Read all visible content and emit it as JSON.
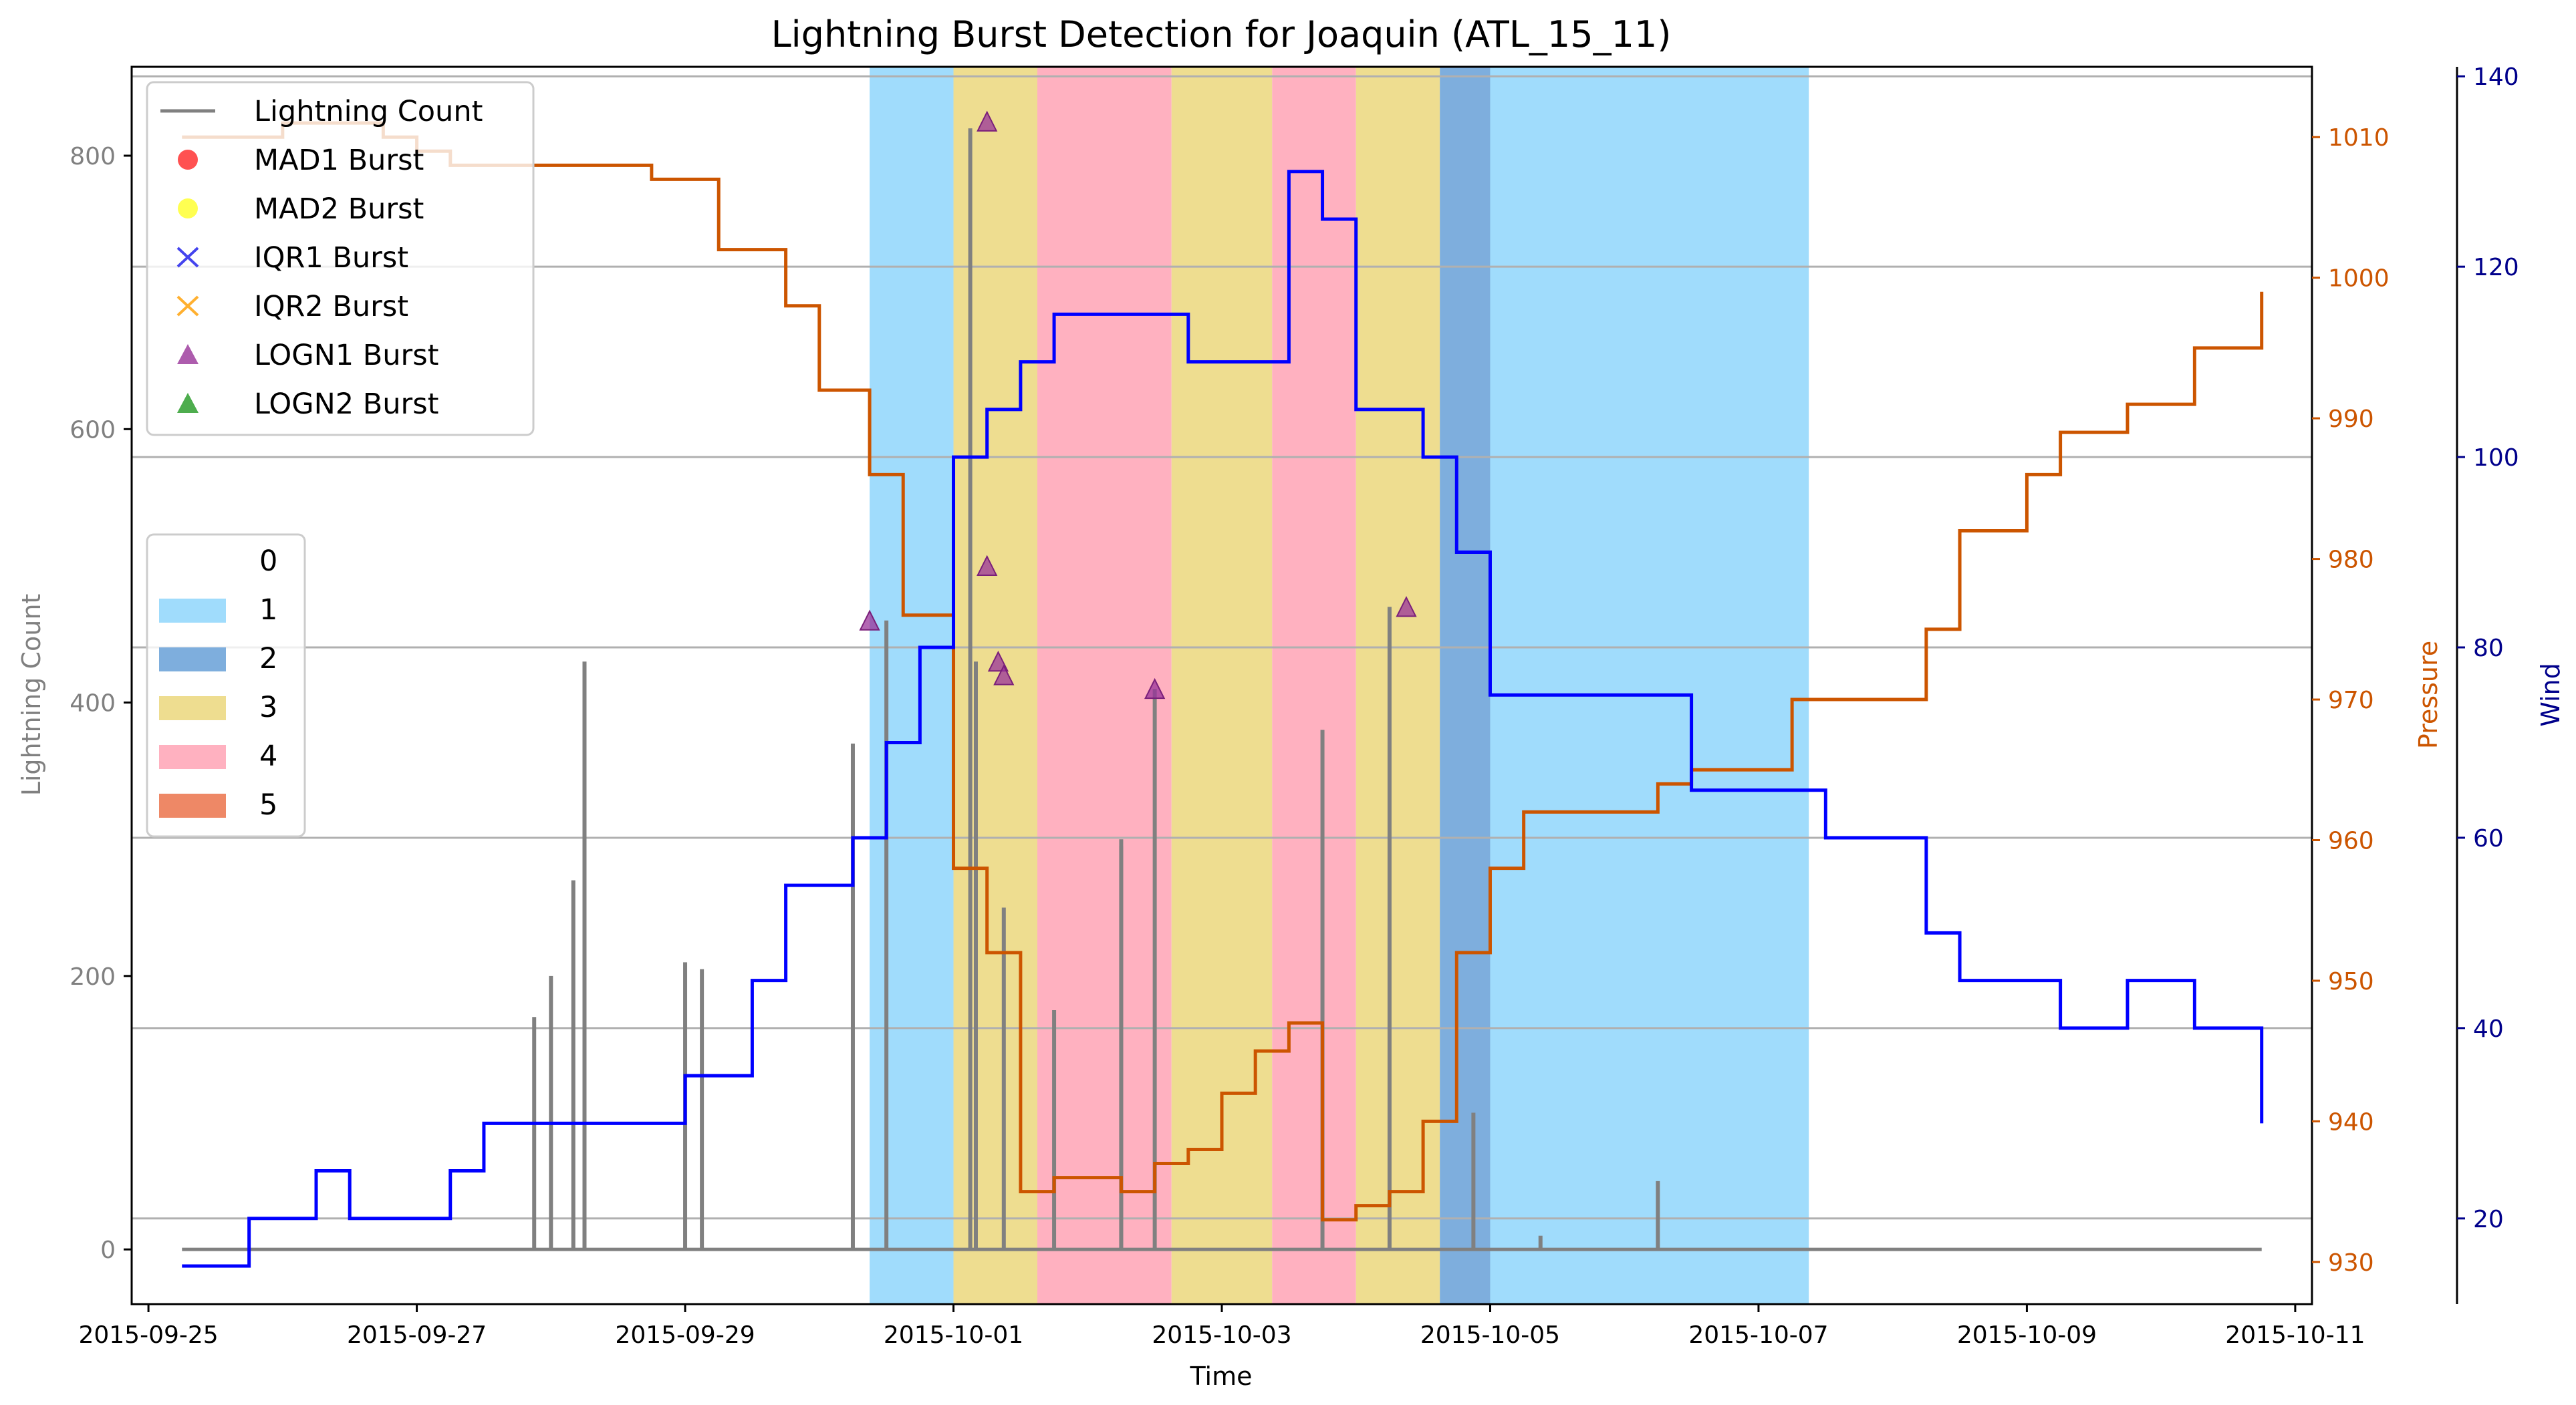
{
  "chart_data": {
    "type": "line",
    "title": "Lightning Burst Detection for Joaquin (ATL_15_11)",
    "xlabel": "Time",
    "ylabel": "Lightning Count",
    "y2label": "Pressure",
    "y3label": "Wind",
    "xlim": [
      "2015-09-24T21:00",
      "2015-10-11T03:00"
    ],
    "ylim": [
      -40,
      865
    ],
    "y2lim": [
      927,
      1015
    ],
    "y3lim": [
      11,
      141
    ],
    "x_ticks": [
      "2015-09-25",
      "2015-09-27",
      "2015-09-29",
      "2015-10-01",
      "2015-10-03",
      "2015-10-05",
      "2015-10-07",
      "2015-10-09",
      "2015-10-11"
    ],
    "y_ticks": [
      0,
      200,
      400,
      600,
      800
    ],
    "y2_ticks": [
      930,
      940,
      950,
      960,
      970,
      980,
      990,
      1000,
      1010
    ],
    "y3_ticks": [
      20,
      40,
      60,
      80,
      100,
      120,
      140
    ],
    "grid": "horizontal at wind ticks",
    "legend_placement": "top-left",
    "colors": {
      "lightning": "#808080",
      "pressure": "#cc5500",
      "wind": "#0000ff",
      "pressure_axis": "#cc5500",
      "wind_axis": "#00008b",
      "lightning_axis": "#808080"
    },
    "legend": [
      {
        "label": "Lightning Count",
        "marker": "line",
        "color": "#808080"
      },
      {
        "label": "MAD1 Burst",
        "marker": "circle",
        "color": "#ff3333"
      },
      {
        "label": "MAD2 Burst",
        "marker": "circle",
        "color": "#ffff33"
      },
      {
        "label": "IQR1 Burst",
        "marker": "x",
        "color": "#4444ee"
      },
      {
        "label": "IQR2 Burst",
        "marker": "x",
        "color": "#ffb030"
      },
      {
        "label": "LOGN1 Burst",
        "marker": "triangle",
        "color": "#993399"
      },
      {
        "label": "LOGN2 Burst",
        "marker": "triangle",
        "color": "#229922"
      }
    ],
    "category_legend": [
      {
        "label": "0",
        "color": "#ffffff"
      },
      {
        "label": "1",
        "color": "#a0dcfc"
      },
      {
        "label": "2",
        "color": "#7eaedd"
      },
      {
        "label": "3",
        "color": "#eedd90"
      },
      {
        "label": "4",
        "color": "#ffb1c0"
      },
      {
        "label": "5",
        "color": "#ee8866"
      }
    ],
    "category_bands": [
      {
        "category": 1,
        "start": "2015-09-30T09:00",
        "end": "2015-10-01T00:00"
      },
      {
        "category": 3,
        "start": "2015-10-01T00:00",
        "end": "2015-10-01T15:00"
      },
      {
        "category": 4,
        "start": "2015-10-01T15:00",
        "end": "2015-10-02T15:00"
      },
      {
        "category": 3,
        "start": "2015-10-02T15:00",
        "end": "2015-10-03T09:00"
      },
      {
        "category": 4,
        "start": "2015-10-03T09:00",
        "end": "2015-10-04T00:00"
      },
      {
        "category": 3,
        "start": "2015-10-04T00:00",
        "end": "2015-10-04T15:00"
      },
      {
        "category": 2,
        "start": "2015-10-04T15:00",
        "end": "2015-10-05T00:00"
      },
      {
        "category": 1,
        "start": "2015-10-05T00:00",
        "end": "2015-10-07T09:00"
      }
    ],
    "pressure_series": {
      "name": "Pressure",
      "x": [
        "2015-09-25T06:00",
        "2015-09-25T18:00",
        "2015-09-26T00:00",
        "2015-09-26T18:00",
        "2015-09-27T00:00",
        "2015-09-27T06:00",
        "2015-09-27T12:00",
        "2015-09-28T12:00",
        "2015-09-28T18:00",
        "2015-09-29T00:00",
        "2015-09-29T06:00",
        "2015-09-29T18:00",
        "2015-09-30T00:00",
        "2015-09-30T09:00",
        "2015-09-30T15:00",
        "2015-10-01T00:00",
        "2015-10-01T06:00",
        "2015-10-01T12:00",
        "2015-10-01T18:00",
        "2015-10-02T06:00",
        "2015-10-02T12:00",
        "2015-10-02T18:00",
        "2015-10-03T00:00",
        "2015-10-03T06:00",
        "2015-10-03T12:00",
        "2015-10-03T18:00",
        "2015-10-04T00:00",
        "2015-10-04T06:00",
        "2015-10-04T12:00",
        "2015-10-04T18:00",
        "2015-10-05T00:00",
        "2015-10-05T06:00",
        "2015-10-06T06:00",
        "2015-10-06T12:00",
        "2015-10-07T06:00",
        "2015-10-08T06:00",
        "2015-10-08T12:00",
        "2015-10-09T00:00",
        "2015-10-09T06:00",
        "2015-10-09T18:00",
        "2015-10-10T06:00",
        "2015-10-10T18:00",
        "2015-10-10T18:00"
      ],
      "values": [
        1010,
        1010,
        1011,
        1010,
        1009,
        1008,
        1008,
        1008,
        1007,
        1007,
        1002,
        998,
        992,
        986,
        976,
        958,
        952,
        935,
        936,
        935,
        937,
        938,
        942,
        945,
        947,
        933,
        934,
        935,
        940,
        952,
        958,
        962,
        964,
        965,
        970,
        975,
        982,
        986,
        989,
        991,
        995,
        997,
        999
      ]
    },
    "wind_series": {
      "name": "Wind",
      "x": [
        "2015-09-25T06:00",
        "2015-09-25T18:00",
        "2015-09-26T06:00",
        "2015-09-26T12:00",
        "2015-09-27T06:00",
        "2015-09-27T12:00",
        "2015-09-28T12:00",
        "2015-09-29T00:00",
        "2015-09-29T12:00",
        "2015-09-29T18:00",
        "2015-09-30T06:00",
        "2015-09-30T12:00",
        "2015-09-30T18:00",
        "2015-10-01T00:00",
        "2015-10-01T06:00",
        "2015-10-01T12:00",
        "2015-10-01T18:00",
        "2015-10-02T12:00",
        "2015-10-02T18:00",
        "2015-10-03T12:00",
        "2015-10-03T18:00",
        "2015-10-04T00:00",
        "2015-10-04T12:00",
        "2015-10-04T18:00",
        "2015-10-05T00:00",
        "2015-10-05T06:00",
        "2015-10-06T06:00",
        "2015-10-06T12:00",
        "2015-10-07T06:00",
        "2015-10-07T12:00",
        "2015-10-08T00:00",
        "2015-10-08T06:00",
        "2015-10-08T12:00",
        "2015-10-09T00:00",
        "2015-10-09T06:00",
        "2015-10-09T18:00",
        "2015-10-10T06:00",
        "2015-10-10T18:00",
        "2015-10-10T18:00"
      ],
      "values": [
        15,
        20,
        25,
        20,
        25,
        30,
        30,
        35,
        45,
        55,
        60,
        70,
        80,
        100,
        105,
        110,
        115,
        115,
        110,
        130,
        125,
        105,
        100,
        90,
        75,
        75,
        75,
        65,
        65,
        60,
        60,
        50,
        45,
        45,
        40,
        45,
        40,
        35,
        30
      ]
    },
    "lightning_series": {
      "name": "Lightning Count",
      "peaks": [
        {
          "x": "2015-09-28T06:00",
          "value": 430
        },
        {
          "x": "2015-09-28T04:00",
          "value": 270
        },
        {
          "x": "2015-09-28T00:00",
          "value": 200
        },
        {
          "x": "2015-09-27T21:00",
          "value": 170
        },
        {
          "x": "2015-09-29T00:00",
          "value": 210
        },
        {
          "x": "2015-09-29T03:00",
          "value": 205
        },
        {
          "x": "2015-09-30T06:00",
          "value": 370
        },
        {
          "x": "2015-09-30T12:00",
          "value": 460
        },
        {
          "x": "2015-10-01T03:00",
          "value": 820
        },
        {
          "x": "2015-10-01T04:00",
          "value": 430
        },
        {
          "x": "2015-10-01T09:00",
          "value": 250
        },
        {
          "x": "2015-10-01T18:00",
          "value": 175
        },
        {
          "x": "2015-10-02T06:00",
          "value": 295
        },
        {
          "x": "2015-10-02T06:00",
          "value": 300
        },
        {
          "x": "2015-10-02T12:00",
          "value": 410
        },
        {
          "x": "2015-10-03T18:00",
          "value": 380
        },
        {
          "x": "2015-10-04T06:00",
          "value": 470
        },
        {
          "x": "2015-10-04T21:00",
          "value": 100
        },
        {
          "x": "2015-10-06T06:00",
          "value": 50
        },
        {
          "x": "2015-10-05T09:00",
          "value": 10
        }
      ]
    },
    "logn1_bursts": [
      {
        "x": "2015-09-30T09:00",
        "value": 460
      },
      {
        "x": "2015-10-01T06:00",
        "value": 500
      },
      {
        "x": "2015-10-01T08:00",
        "value": 430
      },
      {
        "x": "2015-10-01T09:00",
        "value": 420
      },
      {
        "x": "2015-10-01T06:00",
        "value": 825
      },
      {
        "x": "2015-10-02T12:00",
        "value": 410
      },
      {
        "x": "2015-10-04T09:00",
        "value": 470
      }
    ]
  }
}
